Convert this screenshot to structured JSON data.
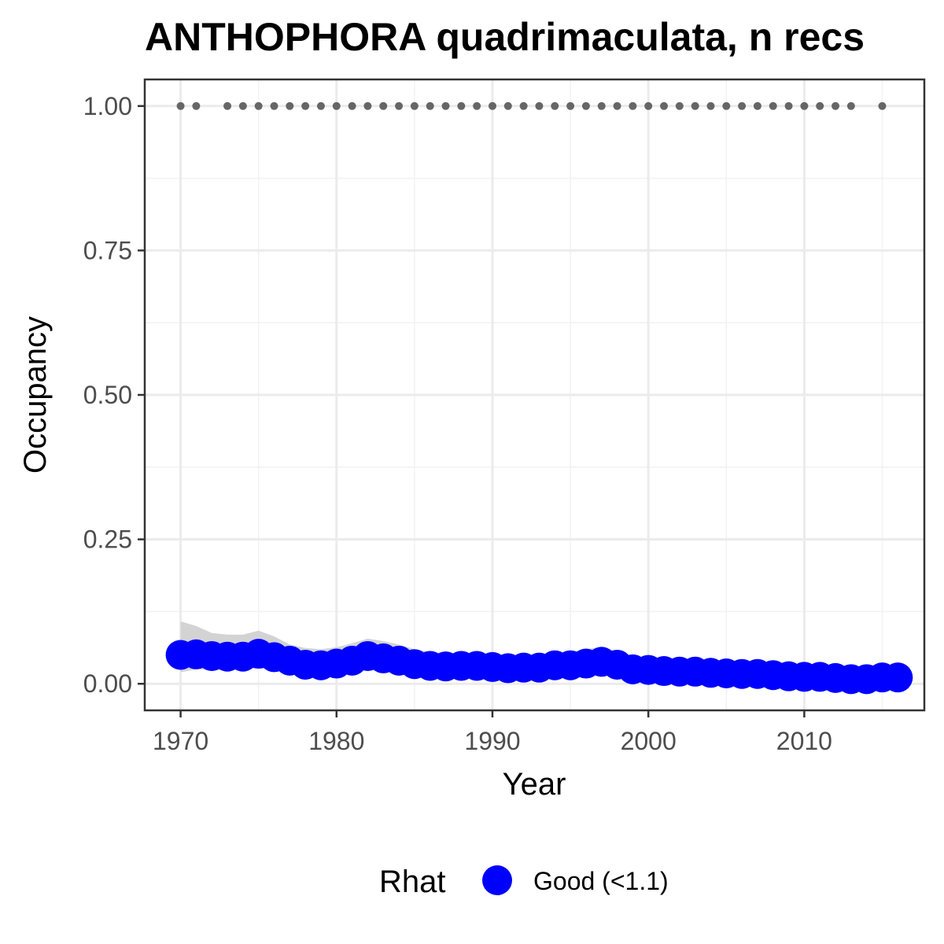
{
  "chart_data": {
    "type": "line",
    "title": "ANTHOPHORA quadrimaculata, n recs",
    "xlabel": "Year",
    "ylabel": "Occupancy",
    "xlim": [
      1967.7,
      2017.7
    ],
    "ylim": [
      -0.046,
      1.046
    ],
    "x_ticks": [
      1970,
      1980,
      1990,
      2000,
      2010
    ],
    "x_tick_labels": [
      "1970",
      "1980",
      "1990",
      "2000",
      "2010"
    ],
    "y_ticks": [
      0,
      0.25,
      0.5,
      0.75,
      1.0
    ],
    "y_tick_labels": [
      "0.00",
      "0.25",
      "0.50",
      "0.75",
      "1.00"
    ],
    "grid": true,
    "series": [
      {
        "name": "Good (<1.1)",
        "color": "#0000ff",
        "x": [
          1970,
          1971,
          1972,
          1973,
          1974,
          1975,
          1976,
          1977,
          1978,
          1979,
          1980,
          1981,
          1982,
          1983,
          1984,
          1985,
          1986,
          1987,
          1988,
          1989,
          1990,
          1991,
          1992,
          1993,
          1994,
          1995,
          1996,
          1997,
          1998,
          1999,
          2000,
          2001,
          2002,
          2003,
          2004,
          2005,
          2006,
          2007,
          2008,
          2009,
          2010,
          2011,
          2012,
          2013,
          2014,
          2015,
          2016
        ],
        "y": [
          0.05,
          0.051,
          0.048,
          0.047,
          0.047,
          0.052,
          0.046,
          0.04,
          0.033,
          0.032,
          0.035,
          0.04,
          0.048,
          0.044,
          0.04,
          0.034,
          0.031,
          0.03,
          0.031,
          0.031,
          0.029,
          0.027,
          0.028,
          0.028,
          0.032,
          0.032,
          0.035,
          0.038,
          0.033,
          0.025,
          0.024,
          0.022,
          0.021,
          0.021,
          0.019,
          0.018,
          0.017,
          0.017,
          0.015,
          0.013,
          0.012,
          0.012,
          0.01,
          0.008,
          0.008,
          0.011,
          0.011
        ],
        "lower": [
          0.02,
          0.025,
          0.024,
          0.023,
          0.024,
          0.027,
          0.024,
          0.02,
          0.018,
          0.017,
          0.018,
          0.02,
          0.024,
          0.022,
          0.02,
          0.018,
          0.016,
          0.015,
          0.016,
          0.016,
          0.015,
          0.014,
          0.014,
          0.014,
          0.016,
          0.016,
          0.018,
          0.02,
          0.017,
          0.013,
          0.012,
          0.011,
          0.01,
          0.01,
          0.009,
          0.009,
          0.008,
          0.008,
          0.007,
          0.006,
          0.005,
          0.005,
          0.004,
          0.003,
          0.003,
          0.004,
          0.004
        ],
        "upper": [
          0.108,
          0.1,
          0.088,
          0.085,
          0.085,
          0.092,
          0.082,
          0.068,
          0.062,
          0.06,
          0.063,
          0.07,
          0.078,
          0.074,
          0.068,
          0.06,
          0.055,
          0.053,
          0.053,
          0.053,
          0.05,
          0.048,
          0.048,
          0.049,
          0.054,
          0.055,
          0.06,
          0.064,
          0.056,
          0.045,
          0.042,
          0.04,
          0.038,
          0.037,
          0.035,
          0.033,
          0.032,
          0.031,
          0.029,
          0.027,
          0.025,
          0.025,
          0.023,
          0.021,
          0.021,
          0.024,
          0.024
        ]
      }
    ],
    "record_years": [
      1970,
      1971,
      1973,
      1974,
      1975,
      1976,
      1977,
      1978,
      1979,
      1980,
      1981,
      1982,
      1983,
      1984,
      1985,
      1986,
      1987,
      1988,
      1989,
      1990,
      1991,
      1992,
      1993,
      1994,
      1995,
      1996,
      1997,
      1998,
      1999,
      2000,
      2001,
      2002,
      2003,
      2004,
      2005,
      2006,
      2007,
      2008,
      2009,
      2010,
      2011,
      2012,
      2013,
      2015
    ],
    "record_y": 1.0,
    "record_color": "#666666",
    "ribbon_color": "#d3d3d3",
    "legend": {
      "title": "Rhat",
      "items": [
        {
          "label": "Good (<1.1)",
          "color": "#0000ff"
        }
      ],
      "position": "bottom"
    }
  }
}
